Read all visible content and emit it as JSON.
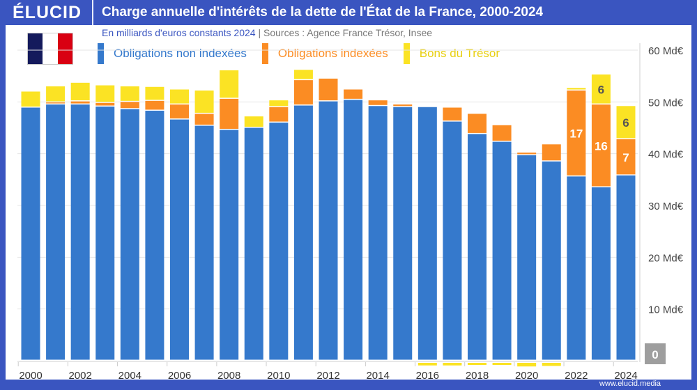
{
  "header": {
    "logo": "ÉLUCID",
    "title": "Charge annuelle d'intérêts de la dette de l'État de la France, 2000-2024"
  },
  "subtitle": {
    "unit": "En milliards d'euros constants 2024",
    "separator": "|",
    "sources": "Sources : Agence France Trésor, Insee"
  },
  "footer": {
    "url": "www.elucid.media"
  },
  "flag": {
    "colors": [
      "#141a5c",
      "#ffffff",
      "#d90012"
    ]
  },
  "chart_data": {
    "type": "bar",
    "stacked": true,
    "title": "Charge annuelle d'intérêts de la dette de l'État de la France, 2000-2024",
    "ylabel": "En milliards d'euros constants 2024",
    "ylim": [
      0,
      60
    ],
    "y_axis_position": "right",
    "y_ticks": [
      "0",
      "10 Md€",
      "20 Md€",
      "30 Md€",
      "40 Md€",
      "50 Md€",
      "60 Md€"
    ],
    "grid": true,
    "legend_position": "top",
    "categories": [
      2000,
      2001,
      2002,
      2003,
      2004,
      2005,
      2006,
      2007,
      2008,
      2009,
      2010,
      2011,
      2012,
      2013,
      2014,
      2015,
      2016,
      2017,
      2018,
      2019,
      2020,
      2021,
      2022,
      2023,
      2024
    ],
    "x_tick_labels": [
      "2000",
      "2002",
      "2004",
      "2006",
      "2008",
      "2010",
      "2012",
      "2014",
      "2016",
      "2018",
      "2020",
      "2022",
      "2024"
    ],
    "series": [
      {
        "name": "Obligations non indexées",
        "color": "#3579cc",
        "values": [
          48.9,
          49.5,
          49.5,
          49.1,
          48.6,
          48.3,
          46.6,
          45.4,
          44.6,
          45.0,
          46.0,
          49.3,
          50.1,
          50.4,
          49.2,
          49.0,
          49.0,
          46.2,
          43.8,
          42.3,
          39.7,
          38.5,
          35.6,
          33.5,
          35.8
        ]
      },
      {
        "name": "Obligations indexées",
        "color": "#fb8c23",
        "values": [
          0,
          0.4,
          0.6,
          0.7,
          1.4,
          1.9,
          2.9,
          2.3,
          6.0,
          0,
          3.0,
          4.9,
          4.4,
          2.0,
          1.1,
          0.5,
          0,
          2.7,
          3.9,
          3.2,
          0.5,
          3.3,
          16.6,
          16.0,
          7.0
        ]
      },
      {
        "name": "Bons du Trésor",
        "color": "#fbe324",
        "values": [
          3.1,
          3.1,
          3.6,
          3.4,
          3.0,
          2.7,
          2.9,
          4.5,
          5.5,
          2.2,
          1.3,
          2.0,
          0,
          0,
          0,
          0,
          -0.5,
          -0.5,
          -0.4,
          -0.3,
          -0.7,
          -0.6,
          0.5,
          5.8,
          6.4
        ]
      }
    ],
    "data_labels": [
      {
        "year": 2022,
        "series": "Obligations indexées",
        "text": "17"
      },
      {
        "year": 2023,
        "series": "Obligations indexées",
        "text": "16"
      },
      {
        "year": 2023,
        "series": "Bons du Trésor",
        "text": "6"
      },
      {
        "year": 2024,
        "series": "Obligations indexées",
        "text": "7"
      },
      {
        "year": 2024,
        "series": "Bons du Trésor",
        "text": "6"
      }
    ]
  }
}
